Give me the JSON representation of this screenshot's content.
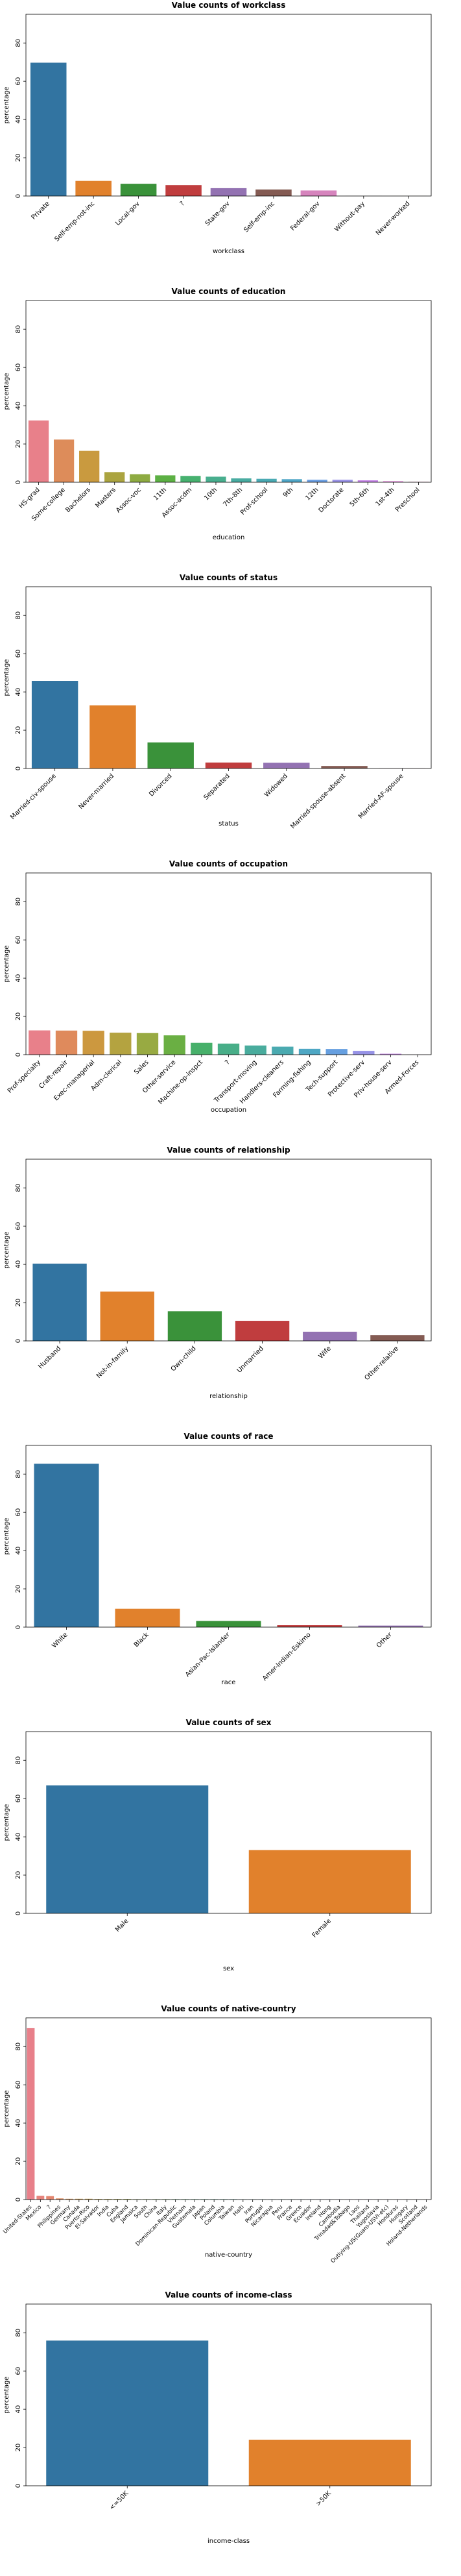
{
  "chart_data": [
    {
      "type": "bar",
      "title": "Value counts of workclass",
      "xlabel": "workclass",
      "ylabel": "percentage",
      "ylim": [
        0,
        95
      ],
      "yticks": [
        0,
        20,
        40,
        60,
        80
      ],
      "categories": [
        "Private",
        "Self-emp-not-inc",
        "Local-gov",
        "?",
        "State-gov",
        "Self-emp-inc",
        "Federal-gov",
        "Without-pay",
        "Never-worked"
      ],
      "values": [
        69.7,
        7.9,
        6.4,
        5.7,
        4.1,
        3.4,
        2.9,
        0.05,
        0.02
      ],
      "colors": [
        "#3274a1",
        "#e1812c",
        "#3a923a",
        "#c03d3e",
        "#9372b2",
        "#845b53",
        "#d684bd",
        "#7f7f7f",
        "#a9aa35"
      ],
      "grid": false,
      "legend": "none"
    },
    {
      "type": "bar",
      "title": "Value counts of education",
      "xlabel": "education",
      "ylabel": "percentage",
      "ylim": [
        0,
        95
      ],
      "yticks": [
        0,
        20,
        40,
        60,
        80
      ],
      "categories": [
        "HS-grad",
        "Some-college",
        "Bachelors",
        "Masters",
        "Assoc-voc",
        "11th",
        "Assoc-acdm",
        "10th",
        "7th-8th",
        "Prof-school",
        "9th",
        "12th",
        "Doctorate",
        "5th-6th",
        "1st-4th",
        "Preschool"
      ],
      "values": [
        32.3,
        22.3,
        16.4,
        5.3,
        4.2,
        3.6,
        3.3,
        2.9,
        2.0,
        1.8,
        1.6,
        1.3,
        1.3,
        1.0,
        0.5,
        0.2
      ],
      "colors": [
        "#e8808a",
        "#dd8c5a",
        "#c99a3f",
        "#aba440",
        "#8eab42",
        "#5cb044",
        "#47b16f",
        "#48ae8e",
        "#49aca1",
        "#4aaab3",
        "#50a6c7",
        "#6a9ee2",
        "#9992e6",
        "#c483e6",
        "#e076d6",
        "#e878b5"
      ],
      "grid": false,
      "legend": "none"
    },
    {
      "type": "bar",
      "title": "Value counts of status",
      "xlabel": "status",
      "ylabel": "percentage",
      "ylim": [
        0,
        95
      ],
      "yticks": [
        0,
        20,
        40,
        60,
        80
      ],
      "categories": [
        "Married-civ-spouse",
        "Never-married",
        "Divorced",
        "Separated",
        "Widowed",
        "Married-spouse-absent",
        "Married-AF-spouse"
      ],
      "values": [
        45.8,
        33.0,
        13.6,
        3.1,
        3.0,
        1.3,
        0.1
      ],
      "colors": [
        "#3274a1",
        "#e1812c",
        "#3a923a",
        "#c03d3e",
        "#9372b2",
        "#845b53",
        "#d684bd"
      ],
      "grid": false,
      "legend": "none"
    },
    {
      "type": "bar",
      "title": "Value counts of occupation",
      "xlabel": "occupation",
      "ylabel": "percentage",
      "ylim": [
        0,
        95
      ],
      "yticks": [
        0,
        20,
        40,
        60,
        80
      ],
      "categories": [
        "Prof-specialty",
        "Craft-repair",
        "Exec-managerial",
        "Adm-clerical",
        "Sales",
        "Other-service",
        "Machine-op-inspct",
        "?",
        "Transport-moving",
        "Handlers-cleaners",
        "Farming-fishing",
        "Tech-support",
        "Protective-serv",
        "Priv-house-serv",
        "Armed-Forces"
      ],
      "values": [
        12.7,
        12.6,
        12.5,
        11.5,
        11.3,
        10.1,
        6.2,
        5.8,
        4.8,
        4.2,
        3.1,
        3.0,
        2.0,
        0.5,
        0.03
      ],
      "colors": [
        "#e8808a",
        "#df8a5c",
        "#cc983f",
        "#b4a340",
        "#98aa42",
        "#6aaf43",
        "#47b06a",
        "#48ae88",
        "#49ac9d",
        "#4aaab0",
        "#4ea7c4",
        "#669fe0",
        "#9692e6",
        "#c583e6",
        "#e776c9"
      ],
      "grid": false,
      "legend": "none"
    },
    {
      "type": "bar",
      "title": "Value counts of relationship",
      "xlabel": "relationship",
      "ylabel": "percentage",
      "ylim": [
        0,
        95
      ],
      "yticks": [
        0,
        20,
        40,
        60,
        80
      ],
      "categories": [
        "Husband",
        "Not-in-family",
        "Own-child",
        "Unmarried",
        "Wife",
        "Other-relative"
      ],
      "values": [
        40.4,
        25.8,
        15.5,
        10.5,
        4.8,
        3.0
      ],
      "colors": [
        "#3274a1",
        "#e1812c",
        "#3a923a",
        "#c03d3e",
        "#9372b2",
        "#845b53"
      ],
      "grid": false,
      "legend": "none"
    },
    {
      "type": "bar",
      "title": "Value counts of race",
      "xlabel": "race",
      "ylabel": "percentage",
      "ylim": [
        0,
        95
      ],
      "yticks": [
        0,
        20,
        40,
        60,
        80
      ],
      "categories": [
        "White",
        "Black",
        "Asian-Pac-Islander",
        "Amer-Indian-Eskimo",
        "Other"
      ],
      "values": [
        85.4,
        9.6,
        3.2,
        1.0,
        0.8
      ],
      "colors": [
        "#3274a1",
        "#e1812c",
        "#3a923a",
        "#c03d3e",
        "#9372b2"
      ],
      "grid": false,
      "legend": "none"
    },
    {
      "type": "bar",
      "title": "Value counts of sex",
      "xlabel": "sex",
      "ylabel": "percentage",
      "ylim": [
        0,
        95
      ],
      "yticks": [
        0,
        20,
        40,
        60,
        80
      ],
      "categories": [
        "Male",
        "Female"
      ],
      "values": [
        66.9,
        33.1
      ],
      "colors": [
        "#3274a1",
        "#e1812c"
      ],
      "grid": false,
      "legend": "none"
    },
    {
      "type": "bar",
      "title": "Value counts of native-country",
      "xlabel": "native-country",
      "ylabel": "percentage",
      "ylim": [
        0,
        95
      ],
      "yticks": [
        0,
        20,
        40,
        60,
        80
      ],
      "categories": [
        "United-States",
        "Mexico",
        "?",
        "Philippines",
        "Germany",
        "Canada",
        "Puerto-Rico",
        "El-Salvador",
        "India",
        "Cuba",
        "England",
        "Jamaica",
        "South",
        "China",
        "Italy",
        "Dominican-Republic",
        "Vietnam",
        "Guatemala",
        "Japan",
        "Poland",
        "Columbia",
        "Taiwan",
        "Haiti",
        "Iran",
        "Portugal",
        "Nicaragua",
        "Peru",
        "France",
        "Greece",
        "Ecuador",
        "Ireland",
        "Hong",
        "Cambodia",
        "Trinadad&Tobago",
        "Laos",
        "Thailand",
        "Yugoslavia",
        "Outlying-US(Guam-USVI-etc)",
        "Honduras",
        "Hungary",
        "Scotland",
        "Holand-Netherlands"
      ],
      "values": [
        89.6,
        2.0,
        1.8,
        0.6,
        0.4,
        0.4,
        0.4,
        0.3,
        0.3,
        0.3,
        0.3,
        0.2,
        0.2,
        0.2,
        0.2,
        0.2,
        0.2,
        0.2,
        0.2,
        0.2,
        0.2,
        0.2,
        0.1,
        0.1,
        0.1,
        0.1,
        0.1,
        0.1,
        0.1,
        0.1,
        0.1,
        0.1,
        0.1,
        0.1,
        0.1,
        0.1,
        0.05,
        0.05,
        0.05,
        0.05,
        0.04,
        0.01
      ],
      "colors": [
        "#e8808a",
        "#e6837c",
        "#e3866f",
        "#df8a5c",
        "#d88f49",
        "#cf953f",
        "#c59a3f",
        "#bc9e3f",
        "#b2a240",
        "#a9a640",
        "#9fa941",
        "#93ab42",
        "#84ad42",
        "#73ae43",
        "#5cb044",
        "#47b15a",
        "#47b06b",
        "#48af79",
        "#48ae85",
        "#48ae8f",
        "#49ad98",
        "#49aca1",
        "#49aba9",
        "#4aabb1",
        "#4aa9b8",
        "#4ba8c0",
        "#4ea6c8",
        "#57a3d2",
        "#649fde",
        "#7a9be6",
        "#8b96e6",
        "#9b91e6",
        "#ab8ce6",
        "#ba87e6",
        "#c982e6",
        "#d77ce5",
        "#e076d6",
        "#e474c6",
        "#e776b8",
        "#e879ab",
        "#e87c9d",
        "#e87e91"
      ],
      "grid": false,
      "legend": "none"
    },
    {
      "type": "bar",
      "title": "Value counts of income-class",
      "xlabel": "income-class",
      "ylabel": "percentage",
      "ylim": [
        0,
        95
      ],
      "yticks": [
        0,
        20,
        40,
        60,
        80
      ],
      "categories": [
        "<=50K",
        ">50K"
      ],
      "values": [
        75.9,
        24.1
      ],
      "colors": [
        "#3274a1",
        "#e1812c"
      ],
      "grid": false,
      "legend": "none"
    }
  ]
}
